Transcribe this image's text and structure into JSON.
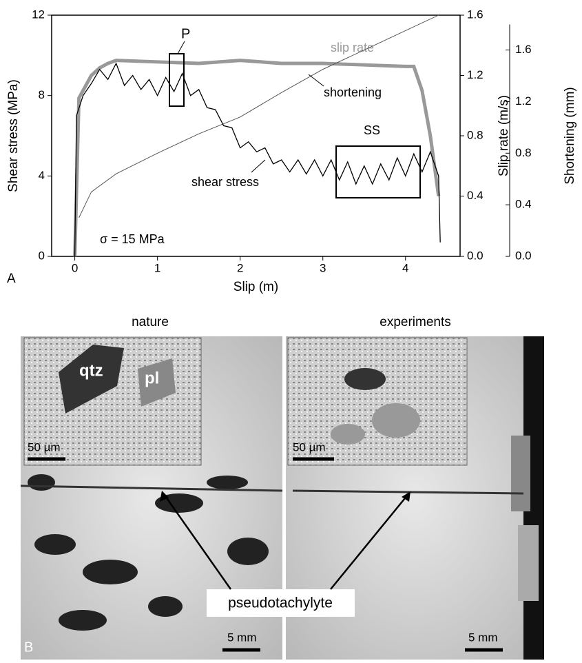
{
  "chart_data": {
    "type": "line",
    "panel": "A",
    "xlabel": "Slip (m)",
    "ylabel": "Shear stress (MPa)",
    "y2label": "Slip rate (m/s)",
    "y3label": "Shortening (mm)",
    "xlim": [
      -0.28,
      4.66
    ],
    "xticks": [
      0,
      1,
      2,
      3,
      4
    ],
    "ylim": [
      0,
      12
    ],
    "yticks": [
      0,
      4,
      8,
      12
    ],
    "y2lim": [
      0,
      1.6
    ],
    "y2ticks": [
      {
        "value": 0,
        "label": "0.0"
      },
      0.4,
      0.8,
      1.2,
      1.6
    ],
    "y3lim": [
      0,
      1.87
    ],
    "y3ticks": [
      {
        "value": 0,
        "label": "0.0"
      },
      0.4,
      0.8,
      1.2,
      1.6
    ],
    "annotations": [
      "P",
      "SS",
      "σ = 15 MPa"
    ],
    "series": [
      {
        "name": "shear stress",
        "color": "#000000",
        "axis": "y",
        "x": [
          0,
          0.02,
          0.1,
          0.2,
          0.3,
          0.4,
          0.5,
          0.6,
          0.7,
          0.8,
          0.9,
          1.0,
          1.1,
          1.2,
          1.3,
          1.4,
          1.5,
          1.6,
          1.7,
          1.8,
          1.9,
          2.0,
          2.1,
          2.2,
          2.3,
          2.4,
          2.5,
          2.6,
          2.7,
          2.8,
          2.9,
          3.0,
          3.1,
          3.2,
          3.3,
          3.4,
          3.5,
          3.6,
          3.7,
          3.8,
          3.9,
          4.0,
          4.1,
          4.2,
          4.3,
          4.4,
          4.42
        ],
        "values": [
          0,
          7,
          8,
          8.6,
          9.3,
          8.8,
          9.6,
          8.5,
          9.0,
          8.3,
          8.8,
          8.0,
          8.9,
          8.2,
          9.1,
          8.0,
          8.3,
          7.4,
          7.3,
          6.5,
          6.4,
          5.4,
          5.7,
          5.2,
          5.4,
          4.6,
          4.8,
          4.2,
          4.8,
          4.1,
          4.8,
          4.0,
          4.8,
          3.8,
          4.7,
          3.6,
          4.5,
          3.6,
          4.6,
          3.8,
          4.9,
          4.0,
          5.1,
          4.2,
          5.2,
          4.0,
          0.7
        ]
      },
      {
        "name": "slip rate",
        "color": "#999999",
        "axis": "y2",
        "x": [
          0,
          0.05,
          0.1,
          0.2,
          0.3,
          0.4,
          0.5,
          1.0,
          1.5,
          2.0,
          2.5,
          3.0,
          3.5,
          4.0,
          4.1,
          4.2,
          4.3,
          4.4
        ],
        "values": [
          0,
          1.05,
          1.1,
          1.2,
          1.25,
          1.28,
          1.3,
          1.29,
          1.28,
          1.3,
          1.28,
          1.28,
          1.27,
          1.26,
          1.26,
          1.1,
          0.8,
          0.4
        ]
      },
      {
        "name": "shortening",
        "color": "#555555",
        "axis": "y3",
        "x": [
          0.05,
          0.2,
          0.5,
          1.0,
          1.5,
          2.0,
          2.5,
          3.0,
          3.5,
          4.0,
          4.4
        ],
        "values": [
          0.3,
          0.5,
          0.64,
          0.8,
          0.95,
          1.08,
          1.27,
          1.45,
          1.6,
          1.75,
          1.87
        ]
      }
    ]
  },
  "figure_b": {
    "panel": "B",
    "left_title": "nature",
    "right_title": "experiments",
    "mineral_1": "qtz",
    "mineral_2": "pl",
    "inset_scale": "50 µm",
    "photo_scale": "5 mm",
    "label": "pseudotachylyte"
  }
}
